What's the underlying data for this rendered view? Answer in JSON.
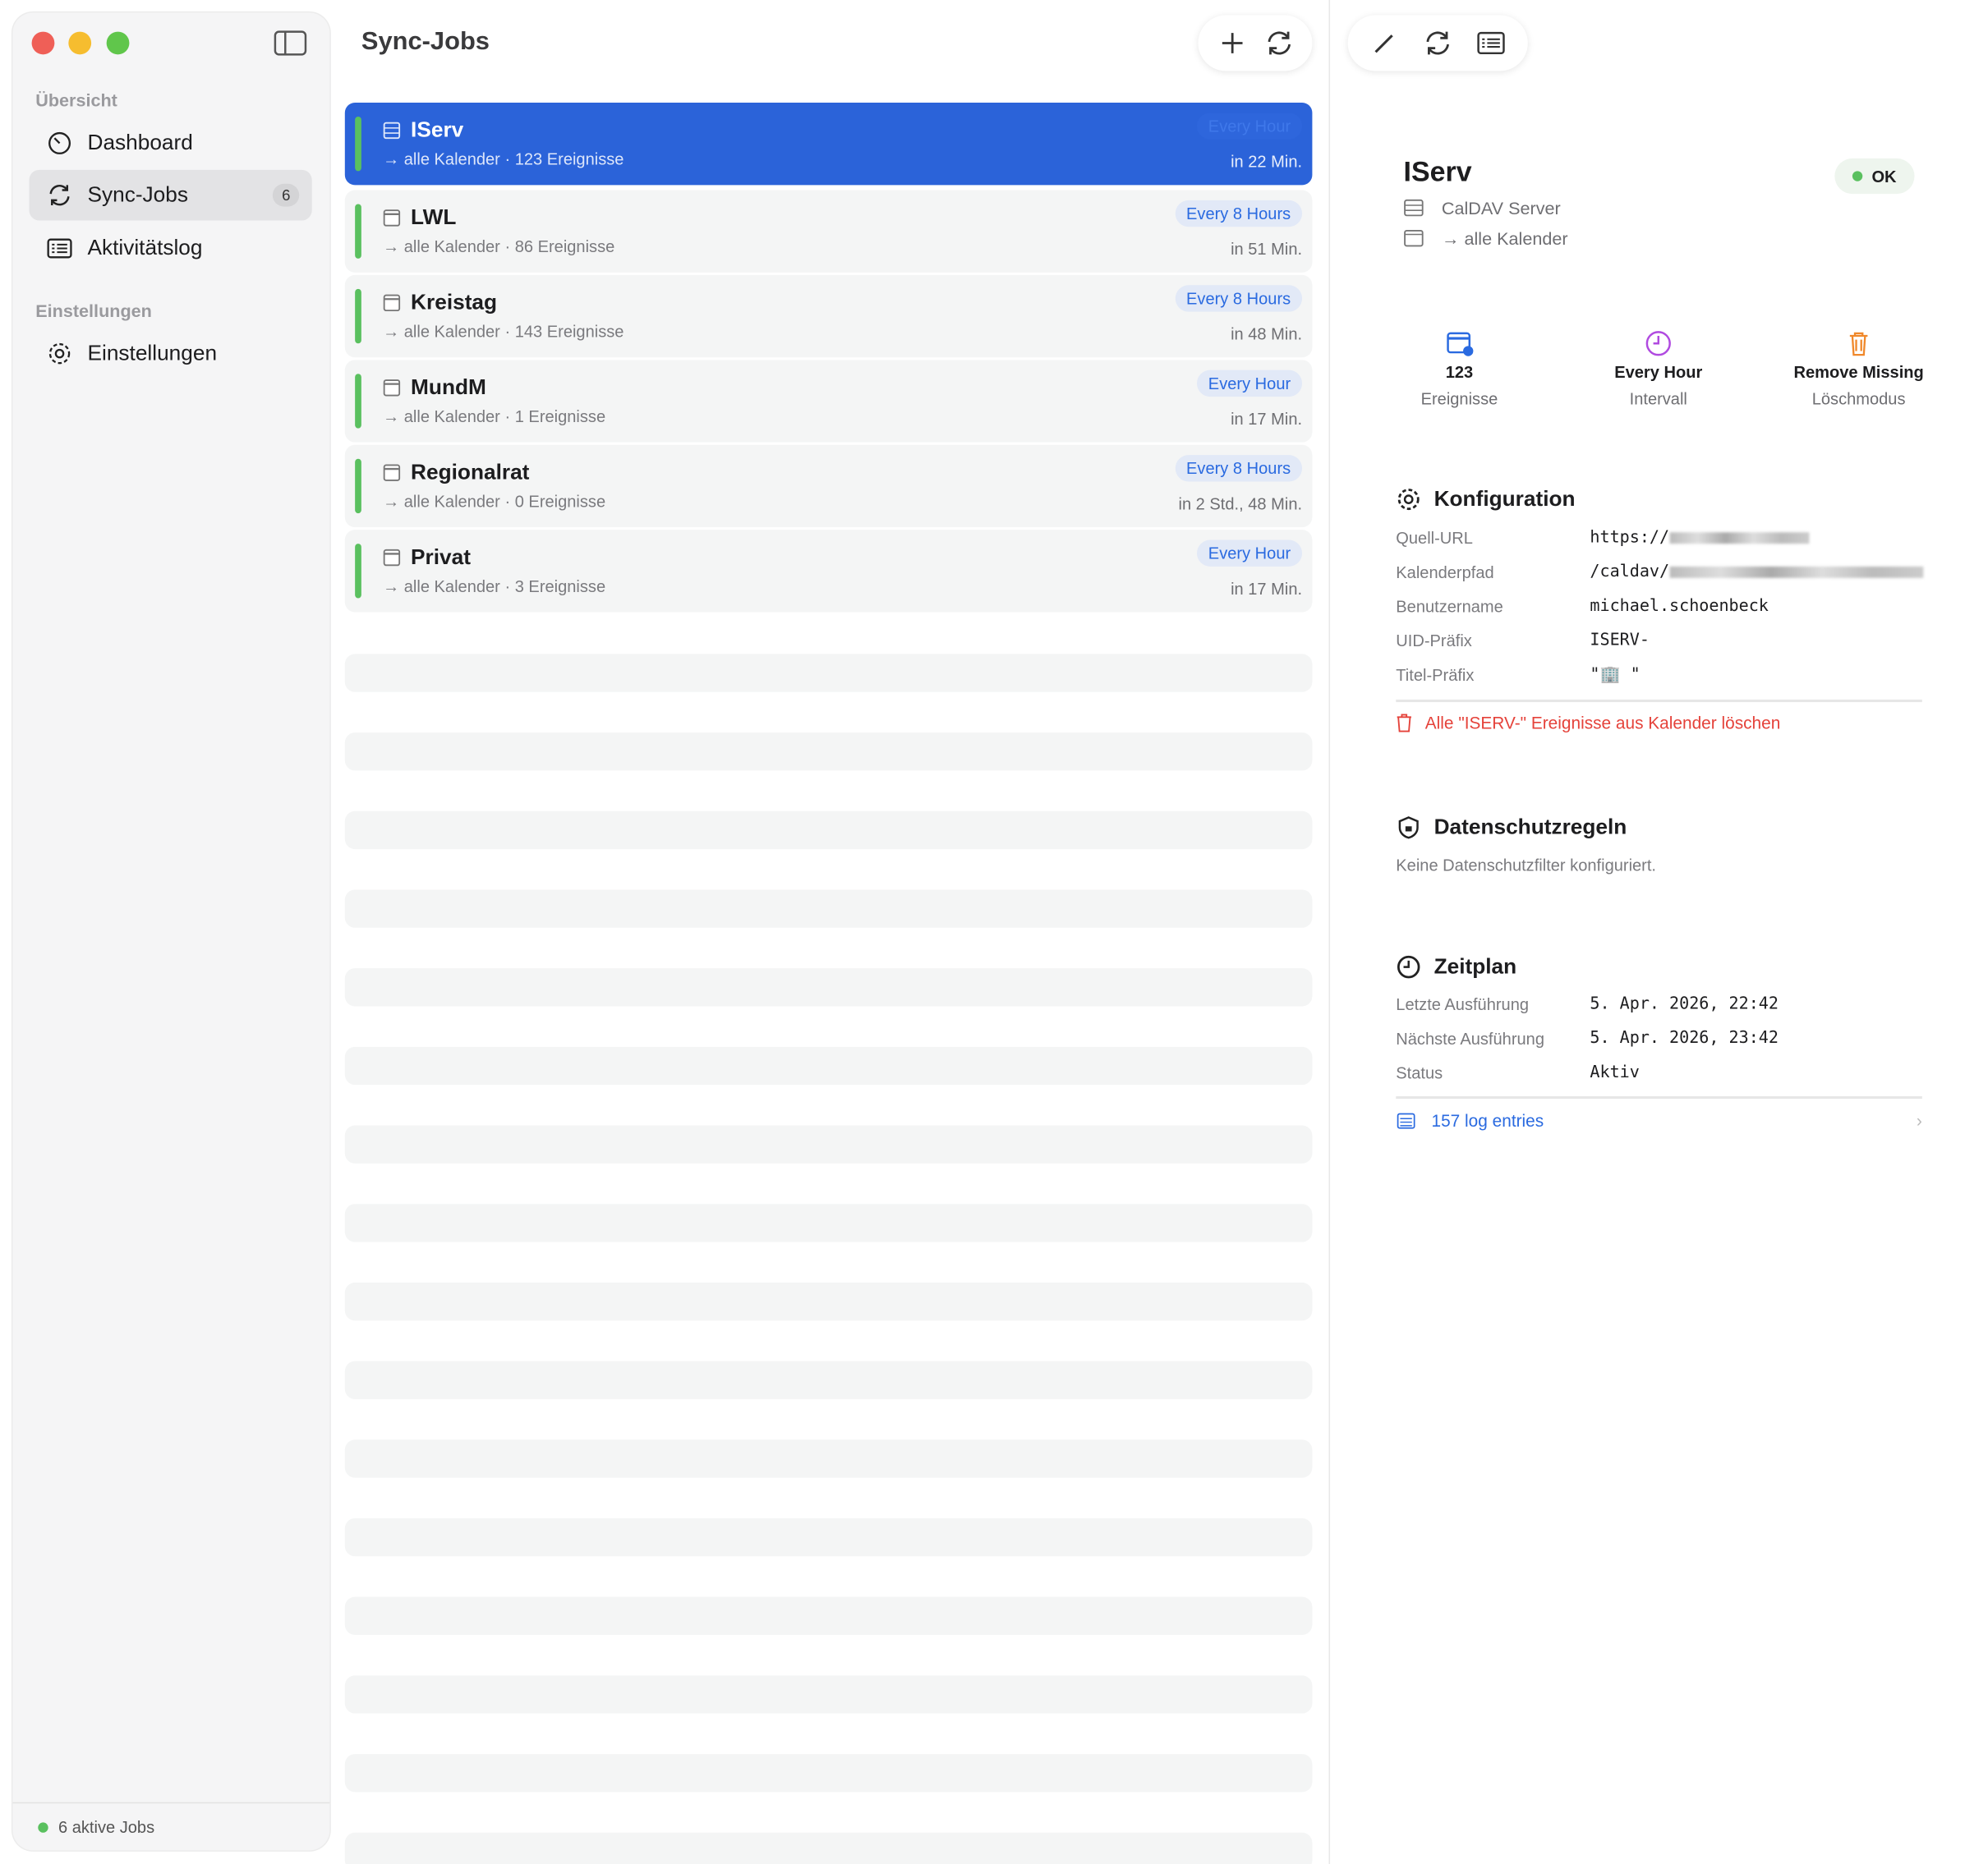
{
  "sidebar": {
    "sections": [
      {
        "title": "Übersicht"
      },
      {
        "title": "Einstellungen"
      }
    ],
    "items": [
      {
        "label": "Dashboard",
        "icon": "gauge-icon"
      },
      {
        "label": "Sync-Jobs",
        "icon": "sync-icon",
        "badge": "6"
      },
      {
        "label": "Aktivitätslog",
        "icon": "list-icon"
      },
      {
        "label": "Einstellungen",
        "icon": "gear-icon"
      }
    ],
    "footer": "6 aktive Jobs"
  },
  "list": {
    "title": "Sync-Jobs",
    "jobs": [
      {
        "name": "IServ",
        "sub": "→ alle Kalender  ·  123 Ereignisse",
        "interval": "Every Hour",
        "next": "in 22 Min."
      },
      {
        "name": "LWL",
        "sub": "→ alle Kalender  ·  86 Ereignisse",
        "interval": "Every 8 Hours",
        "next": "in 51 Min."
      },
      {
        "name": "Kreistag",
        "sub": "→ alle Kalender  ·  143 Ereignisse",
        "interval": "Every 8 Hours",
        "next": "in 48 Min."
      },
      {
        "name": "MundM",
        "sub": "→ alle Kalender  ·  1 Ereignisse",
        "interval": "Every Hour",
        "next": "in 17 Min."
      },
      {
        "name": "Regionalrat",
        "sub": "→ alle Kalender  ·  0 Ereignisse",
        "interval": "Every 8 Hours",
        "next": "in 2 Std., 48 Min."
      },
      {
        "name": "Privat",
        "sub": "→ alle Kalender  ·  3 Ereignisse",
        "interval": "Every Hour",
        "next": "in 17 Min."
      }
    ]
  },
  "detail": {
    "title": "IServ",
    "status": "OK",
    "type": "CalDAV Server",
    "target": "→ alle Kalender",
    "stats": [
      {
        "value": "123",
        "label": "Ereignisse"
      },
      {
        "value": "Every Hour",
        "label": "Intervall"
      },
      {
        "value": "Remove Missing",
        "label": "Löschmodus"
      }
    ],
    "config": {
      "heading": "Konfiguration",
      "rows": [
        {
          "label": "Quell-URL",
          "value": "https://"
        },
        {
          "label": "Kalenderpfad",
          "value": "/caldav/"
        },
        {
          "label": "Benutzername",
          "value": "michael.schoenbeck"
        },
        {
          "label": "UID-Präfix",
          "value": "ISERV-"
        },
        {
          "label": "Titel-Präfix",
          "value": "\"🏢 \""
        }
      ],
      "delete": "Alle \"ISERV-\" Ereignisse aus Kalender löschen"
    },
    "privacy": {
      "heading": "Datenschutzregeln",
      "text": "Keine Datenschutzfilter konfiguriert."
    },
    "schedule": {
      "heading": "Zeitplan",
      "rows": [
        {
          "label": "Letzte Ausführung",
          "value": "5. Apr. 2026, 22:42"
        },
        {
          "label": "Nächste Ausführung",
          "value": "5. Apr. 2026, 23:42"
        },
        {
          "label": "Status",
          "value": "Aktiv"
        }
      ],
      "log": "157 log entries"
    }
  },
  "colors": {
    "accent": "#2b63d9",
    "ok": "#5ac05f",
    "danger": "#e5423a"
  }
}
